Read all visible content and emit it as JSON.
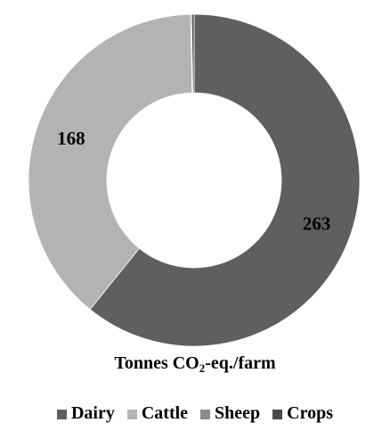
{
  "chart_data": {
    "type": "pie",
    "style": "donut",
    "categories": [
      "Dairy",
      "Cattle",
      "Sheep",
      "Crops"
    ],
    "values": [
      263,
      168,
      0.5,
      1
    ],
    "data_labels": [
      "263",
      "168",
      "",
      ""
    ],
    "colors": [
      "#5f5f5f",
      "#b3b3b3",
      "#8c8c8c",
      "#4a4a4a"
    ],
    "caption_main": "Tonnes CO",
    "caption_sub": "2",
    "caption_rest": "-eq./farm",
    "legend_position": "bottom"
  }
}
